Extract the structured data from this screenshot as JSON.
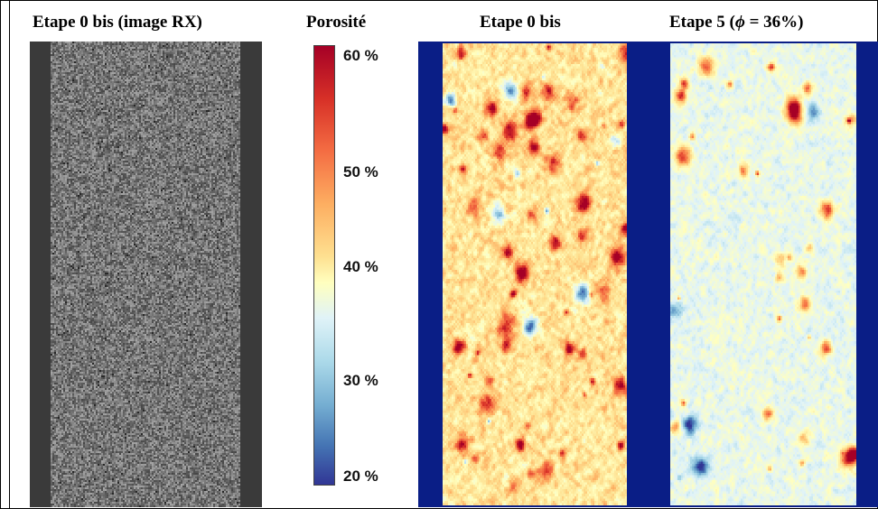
{
  "panels": {
    "rx": {
      "title": "Etape 0 bis (image RX)"
    },
    "colorbar": {
      "title": "Porosité",
      "ticks": [
        "60 %",
        "50 %",
        "40 %",
        "30 %",
        "20 %"
      ],
      "colors": [
        "#a50026",
        "#f46d43",
        "#ffffbf",
        "#74add1",
        "#313695"
      ]
    },
    "map1": {
      "title": "Etape 0 bis"
    },
    "map2": {
      "title_prefix": "Etape 5 (",
      "title_symbol": "ϕ",
      "title_suffix": " = 36%)"
    }
  },
  "chart_data": {
    "type": "heatmap",
    "quantity": "Porosité",
    "scale_range_percent": [
      20,
      60
    ],
    "maps": [
      {
        "title": "Etape 0 bis",
        "typical_porosity_percent": 43
      },
      {
        "title": "Etape 5 (ϕ = 36%)",
        "mean_porosity_percent": 36
      }
    ]
  }
}
